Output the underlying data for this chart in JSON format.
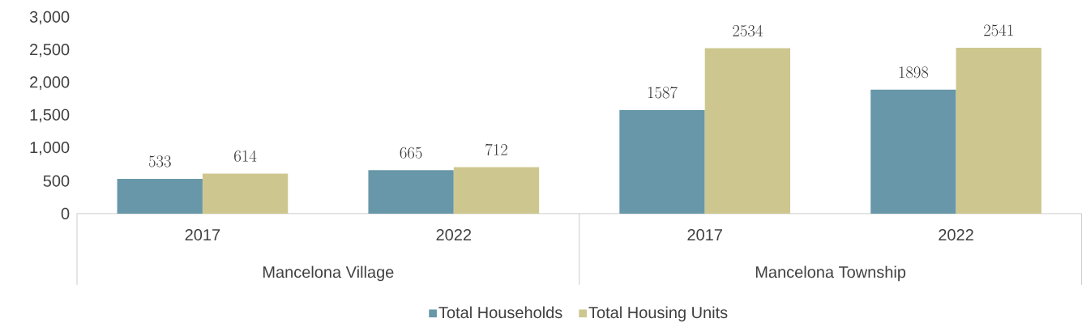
{
  "chart_data": {
    "type": "bar",
    "categories": [
      "2017",
      "2022",
      "2017",
      "2022"
    ],
    "series": [
      {
        "name": "Total Households",
        "color": "#6797a8",
        "values": [
          533,
          665,
          1587,
          1898
        ]
      },
      {
        "name": "Total Housing Units",
        "color": "#cdc78f",
        "values": [
          614,
          712,
          2534,
          2541
        ]
      }
    ],
    "ylim": [
      0,
      3000
    ],
    "yticks": [
      {
        "value": 0,
        "label": "0"
      },
      {
        "value": 500,
        "label": "500"
      },
      {
        "value": 1000,
        "label": "1,000"
      },
      {
        "value": 1500,
        "label": "1,500"
      },
      {
        "value": 2000,
        "label": "2,000"
      },
      {
        "value": 2500,
        "label": "2,500"
      },
      {
        "value": 3000,
        "label": "3,000"
      }
    ],
    "annotations": [
      "Mancelona Village",
      "Mancelona Township"
    ],
    "data_labels": true,
    "grid": false,
    "legend": "bottom"
  }
}
